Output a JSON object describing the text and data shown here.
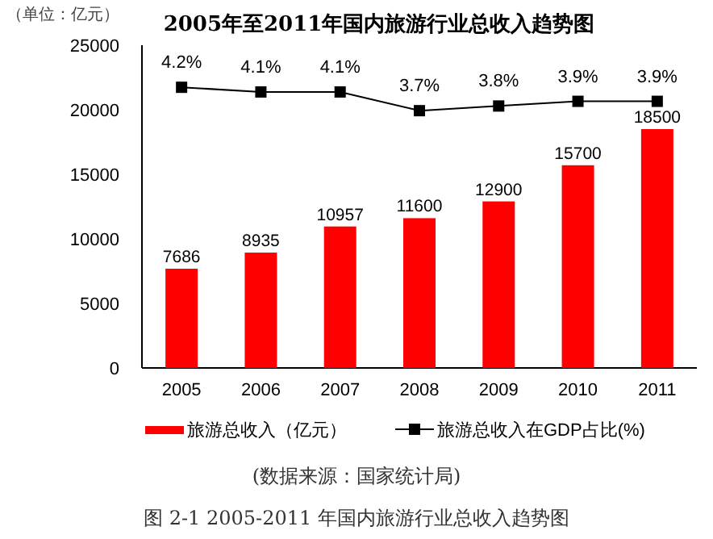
{
  "chart_data": {
    "type": "bar",
    "title": "2005年至2011年国内旅游行业总收入趋势图",
    "ylabel": "（单位：亿元）",
    "categories": [
      "2005",
      "2006",
      "2007",
      "2008",
      "2009",
      "2010",
      "2011"
    ],
    "series": [
      {
        "name": "旅游总收入（亿元）",
        "color": "#ff0000",
        "values": [
          7686,
          8935,
          10957,
          11600,
          12900,
          15700,
          18500
        ],
        "value_labels": [
          "7686",
          "8935",
          "10957",
          "11600",
          "12900",
          "15700",
          "18500"
        ]
      },
      {
        "name": "旅游总收入在GDP占比(%)",
        "type": "line",
        "axis": "y2",
        "color": "#000000",
        "marker": "square",
        "values": [
          4.2,
          4.1,
          4.1,
          3.7,
          3.8,
          3.9,
          3.9
        ],
        "value_labels": [
          "4.2%",
          "4.1%",
          "4.1%",
          "3.7%",
          "3.8%",
          "3.9%",
          "3.9%"
        ]
      }
    ],
    "ylim": [
      0,
      25000
    ],
    "yticks": [
      0,
      5000,
      10000,
      15000,
      20000,
      25000
    ],
    "y2lim": [
      -1.8,
      5.1
    ],
    "grid": false,
    "legend": "bottom",
    "annotations": [
      "(数据来源：国家统计局)",
      "图 2-1 2005-2011 年国内旅游行业总收入趋势图"
    ]
  }
}
